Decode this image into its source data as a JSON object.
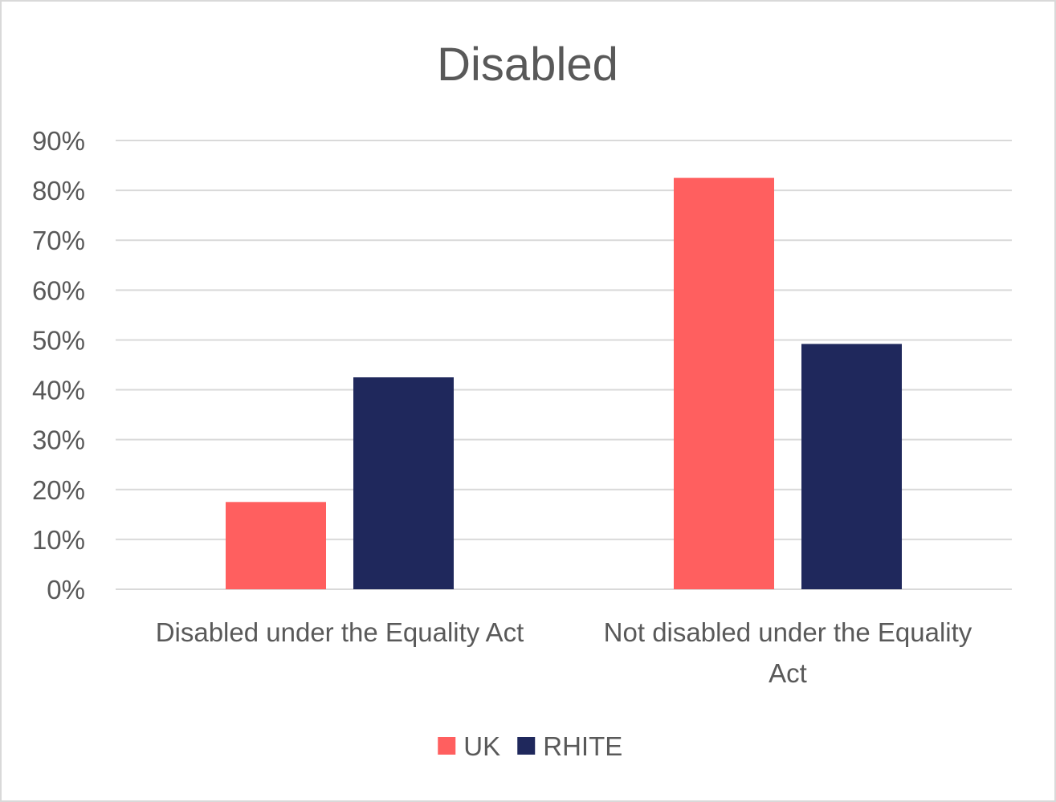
{
  "chart_data": {
    "type": "bar",
    "title": "Disabled",
    "categories": [
      [
        "Disabled under the Equality Act"
      ],
      [
        "Not disabled under the Equality",
        "Act"
      ]
    ],
    "series": [
      {
        "name": "UK",
        "color": "#ff5f5f",
        "values": [
          0.175,
          0.825
        ]
      },
      {
        "name": "RHITE",
        "color": "#1f285c",
        "values": [
          0.425,
          0.492
        ]
      }
    ],
    "ylim": [
      0,
      0.9
    ],
    "yticks": [
      0,
      0.1,
      0.2,
      0.3,
      0.4,
      0.5,
      0.6,
      0.7,
      0.8,
      0.9
    ],
    "ytick_labels": [
      "0%",
      "10%",
      "20%",
      "30%",
      "40%",
      "50%",
      "60%",
      "70%",
      "80%",
      "90%"
    ],
    "xlabel": "",
    "ylabel": "",
    "grid": true,
    "legend_position": "bottom"
  }
}
